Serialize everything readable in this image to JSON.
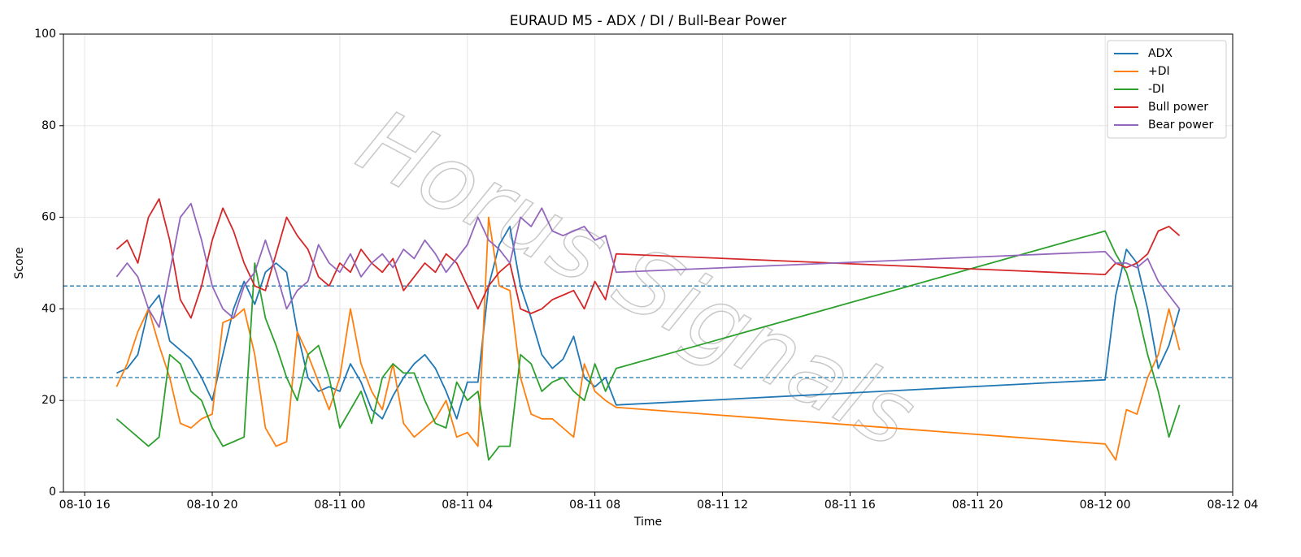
{
  "chart_data": {
    "type": "line",
    "title": "EURAUD M5 - ADX / DI / Bull-Bear Power",
    "xlabel": "Time",
    "ylabel": "Score",
    "watermark": "Horus Signals",
    "x": [
      "08-10 17:00",
      "08-10 17:20",
      "08-10 17:40",
      "08-10 18:00",
      "08-10 18:20",
      "08-10 18:40",
      "08-10 19:00",
      "08-10 19:20",
      "08-10 19:40",
      "08-10 20:00",
      "08-10 20:20",
      "08-10 20:40",
      "08-10 21:00",
      "08-10 21:20",
      "08-10 21:40",
      "08-10 22:00",
      "08-10 22:20",
      "08-10 22:40",
      "08-10 23:00",
      "08-10 23:20",
      "08-10 23:40",
      "08-11 00:00",
      "08-11 00:20",
      "08-11 00:40",
      "08-11 01:00",
      "08-11 01:20",
      "08-11 01:40",
      "08-11 02:00",
      "08-11 02:20",
      "08-11 02:40",
      "08-11 03:00",
      "08-11 03:20",
      "08-11 03:40",
      "08-11 04:00",
      "08-11 04:20",
      "08-11 04:40",
      "08-11 05:00",
      "08-11 05:20",
      "08-11 05:40",
      "08-11 06:00",
      "08-11 06:20",
      "08-11 06:40",
      "08-11 07:00",
      "08-11 07:20",
      "08-11 07:40",
      "08-11 08:00",
      "08-11 08:20",
      "08-11 08:40",
      "08-12 00:00",
      "08-12 00:20",
      "08-12 00:40",
      "08-12 01:00",
      "08-12 01:20",
      "08-12 01:40",
      "08-12 02:00",
      "08-12 02:20"
    ],
    "series": [
      {
        "name": "ADX",
        "color": "#1f77b4",
        "values": [
          26,
          27,
          30,
          40,
          43,
          33,
          31,
          29,
          25,
          20,
          30,
          40,
          46,
          41,
          48,
          50,
          48,
          35,
          25,
          22,
          23,
          22,
          28,
          24,
          18,
          16,
          21,
          25,
          28,
          30,
          27,
          22,
          16,
          24,
          24,
          45,
          54,
          58,
          45,
          38,
          30,
          27,
          29,
          34,
          25,
          23,
          25,
          19,
          24.5,
          43,
          53,
          50,
          40,
          27,
          32,
          40
        ]
      },
      {
        "name": "+DI",
        "color": "#ff7f0e",
        "values": [
          23,
          28,
          35,
          40,
          32,
          25,
          15,
          14,
          16,
          17,
          37,
          38,
          40,
          30,
          14,
          10,
          11,
          35,
          30,
          24,
          18,
          25,
          40,
          28,
          22,
          18,
          28,
          15,
          12,
          14,
          16,
          20,
          12,
          13,
          10,
          60,
          45,
          44,
          25,
          17,
          16,
          16,
          14,
          12,
          28,
          22,
          20,
          18.5,
          10.5,
          7,
          18,
          17,
          25,
          30,
          40,
          31
        ]
      },
      {
        "name": "-DI",
        "color": "#2ca02c",
        "values": [
          16,
          14,
          12,
          10,
          12,
          30,
          28,
          22,
          20,
          14,
          10,
          11,
          12,
          50,
          38,
          32,
          25,
          20,
          30,
          32,
          25,
          14,
          18,
          22,
          15,
          25,
          28,
          26,
          26,
          20,
          15,
          14,
          24,
          20,
          22,
          7,
          10,
          10,
          30,
          28,
          22,
          24,
          25,
          22,
          20,
          28,
          22,
          27,
          57,
          52,
          48,
          40,
          30,
          22,
          12,
          19
        ]
      },
      {
        "name": "Bull power",
        "color": "#d62728",
        "values": [
          53,
          55,
          50,
          60,
          64,
          55,
          42,
          38,
          45,
          55,
          62,
          57,
          50,
          45,
          44,
          52,
          60,
          56,
          53,
          47,
          45,
          50,
          48,
          53,
          50,
          48,
          51,
          44,
          47,
          50,
          48,
          52,
          50,
          45,
          40,
          45,
          48,
          50,
          40,
          39,
          40,
          42,
          43,
          44,
          40,
          46,
          42,
          52,
          47.5,
          50,
          49,
          50,
          52,
          57,
          58,
          56
        ]
      },
      {
        "name": "Bear power",
        "color": "#9467bd",
        "values": [
          47,
          50,
          47,
          40,
          36,
          48,
          60,
          63,
          55,
          45,
          40,
          38,
          45,
          48,
          55,
          48,
          40,
          44,
          46,
          54,
          50,
          48,
          52,
          47,
          50,
          52,
          49,
          53,
          51,
          55,
          52,
          48,
          51,
          54,
          60,
          55,
          53,
          50,
          60,
          58,
          62,
          57,
          56,
          57,
          58,
          55,
          56,
          48,
          52.5,
          50,
          50,
          49,
          51,
          46,
          43,
          40
        ]
      }
    ],
    "hlines": [
      45,
      25
    ],
    "hline_color": "#1f77b4",
    "xlim": [
      "08-10 15:20",
      "08-12 04:00"
    ],
    "xticks": [
      {
        "value": "08-10 16:00",
        "label": "08-10 16"
      },
      {
        "value": "08-10 20:00",
        "label": "08-10 20"
      },
      {
        "value": "08-11 00:00",
        "label": "08-11 00"
      },
      {
        "value": "08-11 04:00",
        "label": "08-11 04"
      },
      {
        "value": "08-11 08:00",
        "label": "08-11 08"
      },
      {
        "value": "08-11 12:00",
        "label": "08-11 12"
      },
      {
        "value": "08-11 16:00",
        "label": "08-11 16"
      },
      {
        "value": "08-11 20:00",
        "label": "08-11 20"
      },
      {
        "value": "08-12 00:00",
        "label": "08-12 00"
      },
      {
        "value": "08-12 04:00",
        "label": "08-12 04"
      }
    ],
    "ylim": [
      0,
      100
    ],
    "yticks": [
      0,
      20,
      40,
      60,
      80,
      100
    ],
    "grid": true,
    "legend": "upper right"
  }
}
